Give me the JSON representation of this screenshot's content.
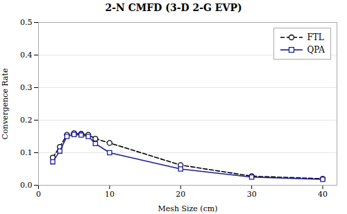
{
  "chart_data": {
    "type": "line",
    "title": "2-N CMFD (3-D 2-G EVP)",
    "xlabel": "Mesh Size (cm)",
    "ylabel": "Convergence Rate",
    "x": [
      2,
      3,
      4,
      5,
      6,
      7,
      8,
      10,
      20,
      30,
      40
    ],
    "series": [
      {
        "name": "FTL",
        "color": "#000000",
        "marker": "circle",
        "line_style": "dashed",
        "values": [
          0.085,
          0.118,
          0.155,
          0.16,
          0.158,
          0.155,
          0.143,
          0.13,
          0.062,
          0.028,
          0.02
        ]
      },
      {
        "name": "QPA",
        "color": "#1a1aaa",
        "marker": "square",
        "line_style": "solid",
        "values": [
          0.072,
          0.105,
          0.15,
          0.156,
          0.154,
          0.15,
          0.128,
          0.1,
          0.05,
          0.025,
          0.018
        ]
      }
    ],
    "xlim": [
      0,
      42
    ],
    "ylim": [
      0.0,
      0.5
    ],
    "xticks": [
      0,
      10,
      20,
      30,
      40
    ],
    "yticks": [
      {
        "value": 0.0,
        "label": "0.0"
      },
      0.1,
      0.2,
      0.3,
      0.4,
      0.5
    ],
    "grid": "y",
    "legend": "upper right"
  }
}
